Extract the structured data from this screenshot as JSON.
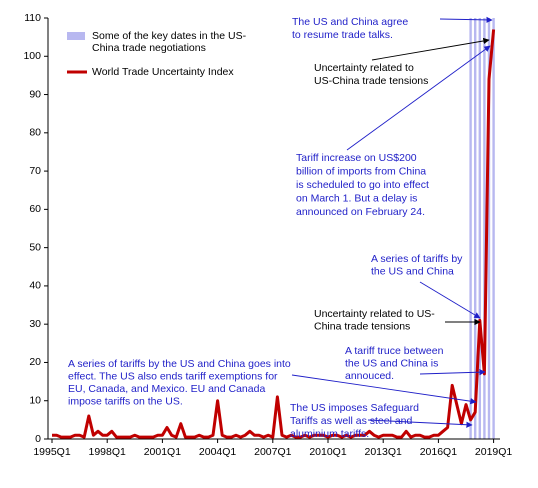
{
  "chart_data": {
    "type": "line",
    "categories": [
      "1995Q1",
      null,
      null,
      null,
      null,
      null,
      null,
      null,
      null,
      null,
      null,
      null,
      "1998Q1",
      null,
      null,
      null,
      null,
      null,
      null,
      null,
      null,
      null,
      null,
      null,
      "2001Q1",
      null,
      null,
      null,
      null,
      null,
      null,
      null,
      null,
      null,
      null,
      null,
      "2004Q1",
      null,
      null,
      null,
      null,
      null,
      null,
      null,
      null,
      null,
      null,
      null,
      "2007Q1",
      null,
      null,
      null,
      null,
      null,
      null,
      null,
      null,
      null,
      null,
      null,
      "2010Q1",
      null,
      null,
      null,
      null,
      null,
      null,
      null,
      null,
      null,
      null,
      null,
      "2013Q1",
      null,
      null,
      null,
      null,
      null,
      null,
      null,
      null,
      null,
      null,
      null,
      "2016Q1",
      null,
      null,
      null,
      null,
      null,
      null,
      null,
      null,
      null,
      null,
      null,
      "2019Q1"
    ],
    "series": [
      {
        "name": "Some of the key dates in the US-China trade negotiations",
        "type": "bar",
        "color": "#b8b8f0",
        "values": [
          null,
          null,
          null,
          null,
          null,
          null,
          null,
          null,
          null,
          null,
          null,
          null,
          null,
          null,
          null,
          null,
          null,
          null,
          null,
          null,
          null,
          null,
          null,
          null,
          null,
          null,
          null,
          null,
          null,
          null,
          null,
          null,
          null,
          null,
          null,
          null,
          null,
          null,
          null,
          null,
          null,
          null,
          null,
          null,
          null,
          null,
          null,
          null,
          null,
          null,
          null,
          null,
          null,
          null,
          null,
          null,
          null,
          null,
          null,
          null,
          null,
          null,
          null,
          null,
          null,
          null,
          null,
          null,
          null,
          null,
          null,
          null,
          null,
          null,
          null,
          null,
          null,
          null,
          null,
          null,
          null,
          null,
          null,
          null,
          null,
          null,
          null,
          null,
          null,
          null,
          null,
          110,
          110,
          110,
          110,
          110,
          110
        ]
      },
      {
        "name": "World Trade Uncertainty Index",
        "type": "line",
        "color": "#c00000",
        "values": [
          1,
          1,
          0.5,
          0.5,
          0.5,
          1,
          1,
          0.5,
          6,
          1,
          2,
          1,
          1,
          2,
          0.5,
          0.5,
          0.5,
          0.5,
          1,
          0.5,
          0.5,
          0.5,
          0.5,
          1,
          1,
          3,
          1,
          0.5,
          4,
          0.5,
          0.5,
          0.5,
          1,
          0.5,
          0.5,
          1,
          10,
          1,
          0.5,
          0.5,
          1,
          0.5,
          1,
          2,
          1,
          1,
          0.5,
          1,
          0.5,
          11,
          1,
          0.5,
          1,
          0.5,
          0.5,
          1,
          0.5,
          1,
          1,
          1,
          0.5,
          1,
          1,
          0.5,
          1,
          0.5,
          1,
          1,
          1,
          2,
          1,
          0.5,
          1,
          1,
          1,
          0.5,
          0.5,
          2,
          0.5,
          1,
          1,
          0.5,
          0.5,
          1,
          1,
          2,
          3,
          14,
          9,
          4,
          9,
          5,
          7,
          31,
          17,
          94,
          107
        ]
      }
    ],
    "ylim": [
      0,
      110
    ],
    "yticks": [
      0,
      10,
      20,
      30,
      40,
      50,
      60,
      70,
      80,
      90,
      100,
      110
    ],
    "annotations": [
      {
        "color": "#1f1fc8",
        "lines": [
          "The US and China agree",
          "to resume trade talks."
        ]
      },
      {
        "color": "#000000",
        "lines": [
          "Uncertainty related to",
          "US-China trade tensions"
        ]
      },
      {
        "color": "#1f1fc8",
        "lines": [
          "Tariff increase on US$200",
          "billion of imports from China",
          "is scheduled to go into effect",
          "on March 1. But a delay is",
          "announced on February 24."
        ]
      },
      {
        "color": "#1f1fc8",
        "lines": [
          "A series of tariffs by",
          "the US and China"
        ]
      },
      {
        "color": "#000000",
        "lines": [
          "Uncertainty related to US-",
          "China trade tensions"
        ]
      },
      {
        "color": "#1f1fc8",
        "lines": [
          "A tariff truce between",
          "the US and China is",
          "annouced."
        ]
      },
      {
        "color": "#1f1fc8",
        "lines": [
          "A series of tariffs by the US and China goes into",
          "effect. The US also ends tariff exemptions for",
          "EU, Canada, and Mexico. EU and Canada",
          "impose tariffs on the US."
        ]
      },
      {
        "color": "#1f1fc8",
        "lines": [
          "The US imposes Safeguard",
          "Tariffs as well as steel and",
          "aluminium tariffs."
        ]
      }
    ]
  }
}
